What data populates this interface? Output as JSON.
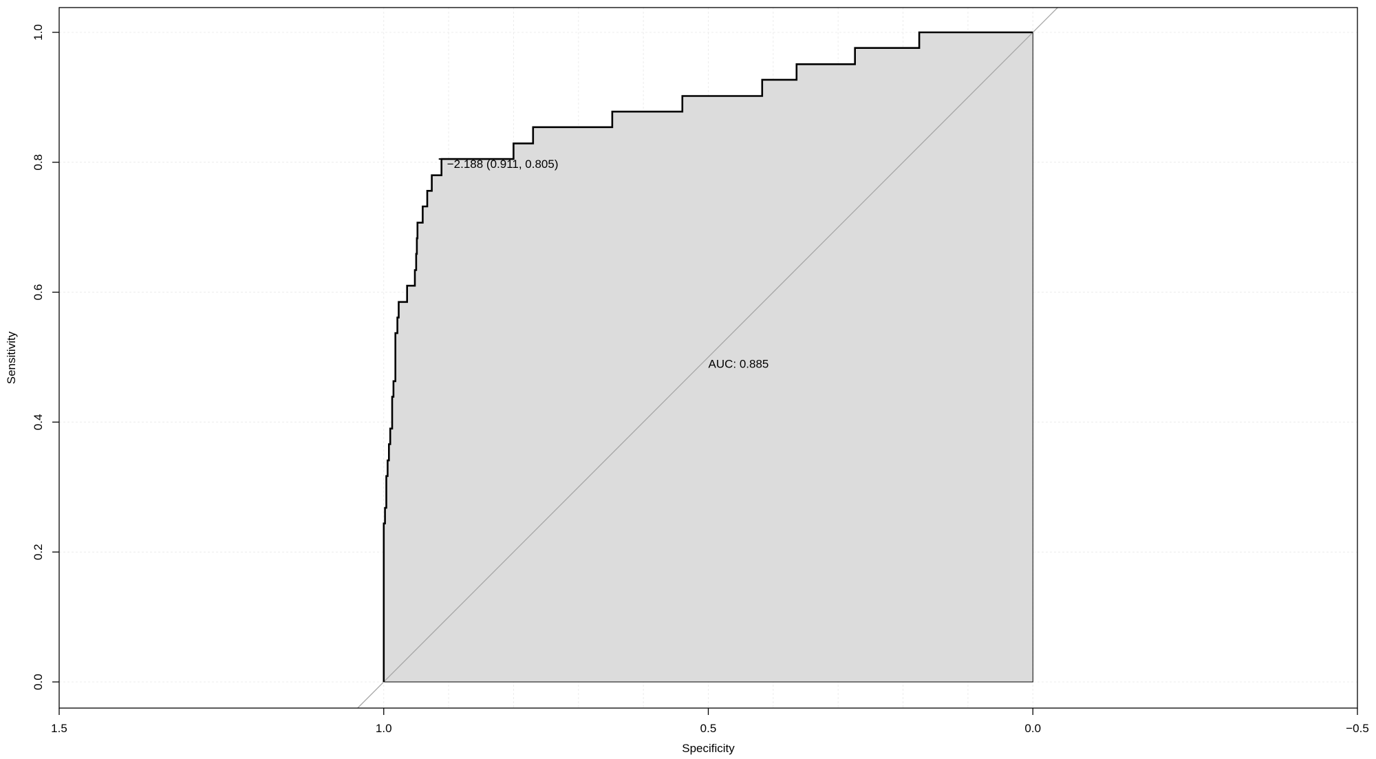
{
  "chart_data": {
    "type": "line",
    "xlabel": "Specificity",
    "ylabel": "Sensitivity",
    "xlim": [
      1.5,
      -0.5
    ],
    "ylim": [
      0.0,
      1.0
    ],
    "x_ticks": [
      "1.5",
      "1.0",
      "0.5",
      "0.0",
      "−0.5"
    ],
    "x_tick_values": [
      1.5,
      1.0,
      0.5,
      0.0,
      -0.5
    ],
    "y_ticks": [
      "0.0",
      "0.2",
      "0.4",
      "0.6",
      "0.8",
      "1.0"
    ],
    "y_tick_values": [
      0.0,
      0.2,
      0.4,
      0.6,
      0.8,
      1.0
    ],
    "grid": true,
    "auc_fill": "#dcdcdc",
    "diagonal_color": "#a6a6a6",
    "curve_color": "#000000",
    "auc_label": "AUC: 0.885",
    "auc_label_position": [
      0.5,
      0.49
    ],
    "threshold_label": "−2.188 (0.911, 0.805)",
    "threshold_point": {
      "specificity": 0.911,
      "sensitivity": 0.805
    },
    "series": [
      {
        "specificity": [
          1.0,
          1.0,
          0.998,
          0.998,
          0.996,
          0.996,
          0.994,
          0.994,
          0.992,
          0.992,
          0.99,
          0.99,
          0.987,
          0.987,
          0.985,
          0.985,
          0.982,
          0.982,
          0.979,
          0.979,
          0.977,
          0.977,
          0.976,
          0.976,
          0.975,
          0.975,
          0.964,
          0.964,
          0.952,
          0.952,
          0.95,
          0.95,
          0.949,
          0.949,
          0.948,
          0.948,
          0.94,
          0.94,
          0.933,
          0.933,
          0.926,
          0.926,
          0.914,
          0.914,
          0.911,
          0.911,
          0.8,
          0.8,
          0.77,
          0.77,
          0.648,
          0.648,
          0.54,
          0.54,
          0.417,
          0.417,
          0.364,
          0.364,
          0.274,
          0.274,
          0.175,
          0.175,
          0.0
        ],
        "sensitivity": [
          0.0,
          0.244,
          0.244,
          0.268,
          0.268,
          0.317,
          0.317,
          0.341,
          0.341,
          0.366,
          0.366,
          0.39,
          0.39,
          0.439,
          0.439,
          0.463,
          0.463,
          0.537,
          0.537,
          0.561,
          0.561,
          0.585,
          0.585,
          0.585,
          0.585,
          0.585,
          0.585,
          0.61,
          0.61,
          0.634,
          0.634,
          0.659,
          0.659,
          0.683,
          0.683,
          0.707,
          0.707,
          0.732,
          0.732,
          0.756,
          0.756,
          0.78,
          0.78,
          0.78,
          0.78,
          0.805,
          0.805,
          0.829,
          0.829,
          0.854,
          0.854,
          0.878,
          0.878,
          0.902,
          0.902,
          0.927,
          0.927,
          0.951,
          0.951,
          0.976,
          0.976,
          1.0,
          1.0
        ]
      }
    ]
  }
}
